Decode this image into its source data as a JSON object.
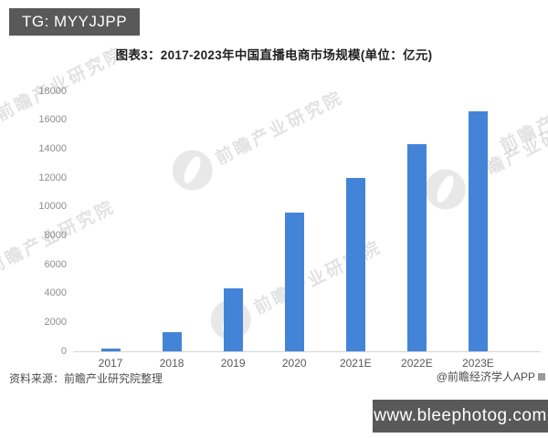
{
  "badge": {
    "text": "TG: MYYJJPP"
  },
  "chart_data": {
    "type": "bar",
    "title": "图表3：2017-2023年中国直播电商市场规模(单位：亿元)",
    "categories": [
      "2017",
      "2018",
      "2019",
      "2020",
      "2021E",
      "2022E",
      "2023E"
    ],
    "values": [
      190,
      1330,
      4338,
      9610,
      12012,
      14354,
      16606
    ],
    "unit": "亿元",
    "xlabel": "",
    "ylabel": "",
    "ylim": [
      0,
      18000
    ],
    "yticks": [
      0,
      2000,
      4000,
      6000,
      8000,
      10000,
      12000,
      14000,
      16000,
      18000
    ],
    "bar_color": "#4484d8",
    "grid": false,
    "legend": null
  },
  "footer": {
    "source": "资料来源：前瞻产业研究院整理",
    "credit": "@前瞻经济学人APP"
  },
  "watermark": {
    "brand_text": "前瞻产业研究院",
    "site": "www.bleephotog.com"
  },
  "colors": {
    "bar": "#4484d8",
    "badge_bg": "#595959",
    "site_box_bg": "#595959",
    "axis_line": "#d4d4d4",
    "ytick_text": "#8c8c8c",
    "xlabel_text": "#595959"
  }
}
